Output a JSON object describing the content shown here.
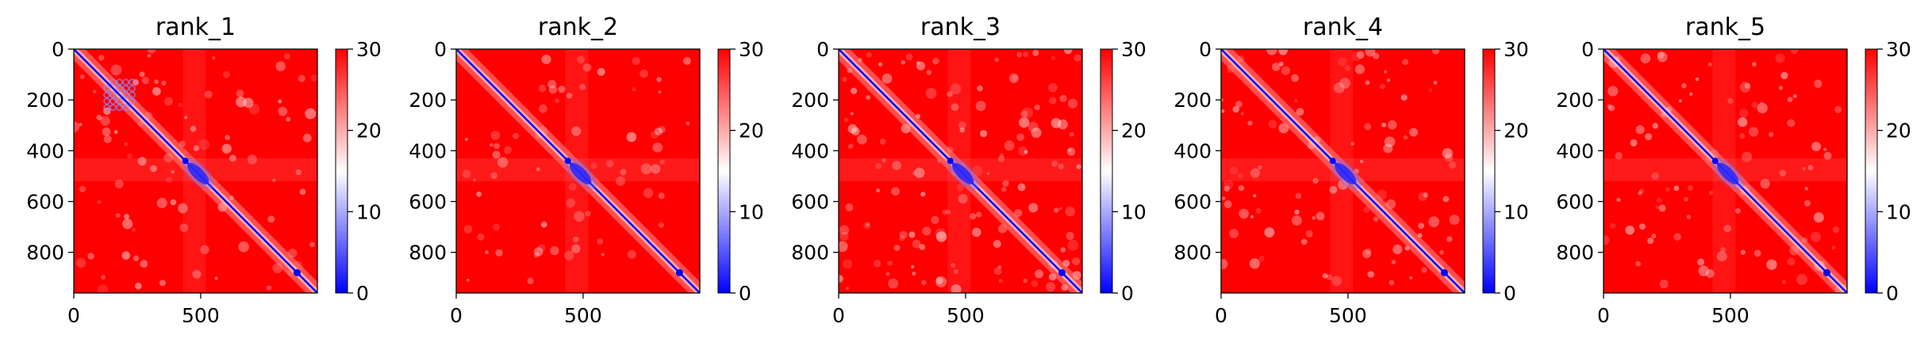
{
  "chart_data": [
    {
      "type": "heatmap",
      "title": "rank_1",
      "xlim": [
        0,
        960
      ],
      "ylim": [
        960,
        0
      ],
      "xticks": [
        0,
        500
      ],
      "yticks": [
        0,
        200,
        400,
        600,
        800
      ],
      "colorbar": {
        "min": 0,
        "max": 30,
        "ticks": [
          0,
          10,
          20,
          30
        ],
        "colors": [
          "#0000ff",
          "#ffffff",
          "#ff0000"
        ]
      },
      "features": {
        "diagonal": true,
        "blob": [
          490,
          490
        ],
        "spot": [
          880,
          880
        ],
        "spot2": [
          440,
          440
        ],
        "checker_block": [
          130,
          230
        ],
        "mottle": 0.18
      }
    },
    {
      "type": "heatmap",
      "title": "rank_2",
      "xlim": [
        0,
        960
      ],
      "ylim": [
        960,
        0
      ],
      "xticks": [
        0,
        500
      ],
      "yticks": [
        0,
        200,
        400,
        600,
        800
      ],
      "colorbar": {
        "min": 0,
        "max": 30,
        "ticks": [
          0,
          10,
          20,
          30
        ],
        "colors": [
          "#0000ff",
          "#ffffff",
          "#ff0000"
        ]
      },
      "features": {
        "diagonal": true,
        "blob": [
          490,
          490
        ],
        "spot": [
          880,
          880
        ],
        "spot2": [
          440,
          440
        ],
        "mottle": 0.14
      }
    },
    {
      "type": "heatmap",
      "title": "rank_3",
      "xlim": [
        0,
        960
      ],
      "ylim": [
        960,
        0
      ],
      "xticks": [
        0,
        500
      ],
      "yticks": [
        0,
        200,
        400,
        600,
        800
      ],
      "colorbar": {
        "min": 0,
        "max": 30,
        "ticks": [
          0,
          10,
          20,
          30
        ],
        "colors": [
          "#0000ff",
          "#ffffff",
          "#ff0000"
        ]
      },
      "features": {
        "diagonal": true,
        "blob": [
          490,
          490
        ],
        "spot": [
          880,
          880
        ],
        "spot2": [
          440,
          440
        ],
        "mottle": 0.28
      }
    },
    {
      "type": "heatmap",
      "title": "rank_4",
      "xlim": [
        0,
        960
      ],
      "ylim": [
        960,
        0
      ],
      "xticks": [
        0,
        500
      ],
      "yticks": [
        0,
        200,
        400,
        600,
        800
      ],
      "colorbar": {
        "min": 0,
        "max": 30,
        "ticks": [
          0,
          10,
          20,
          30
        ],
        "colors": [
          "#0000ff",
          "#ffffff",
          "#ff0000"
        ]
      },
      "features": {
        "diagonal": true,
        "blob": [
          490,
          490
        ],
        "spot": [
          880,
          880
        ],
        "spot2": [
          440,
          440
        ],
        "mottle": 0.2
      }
    },
    {
      "type": "heatmap",
      "title": "rank_5",
      "xlim": [
        0,
        960
      ],
      "ylim": [
        960,
        0
      ],
      "xticks": [
        0,
        500
      ],
      "yticks": [
        0,
        200,
        400,
        600,
        800
      ],
      "colorbar": {
        "min": 0,
        "max": 30,
        "ticks": [
          0,
          10,
          20,
          30
        ],
        "colors": [
          "#0000ff",
          "#ffffff",
          "#ff0000"
        ]
      },
      "features": {
        "diagonal": true,
        "blob": [
          490,
          490
        ],
        "spot": [
          880,
          880
        ],
        "spot2": [
          440,
          440
        ],
        "mottle": 0.2
      }
    }
  ]
}
